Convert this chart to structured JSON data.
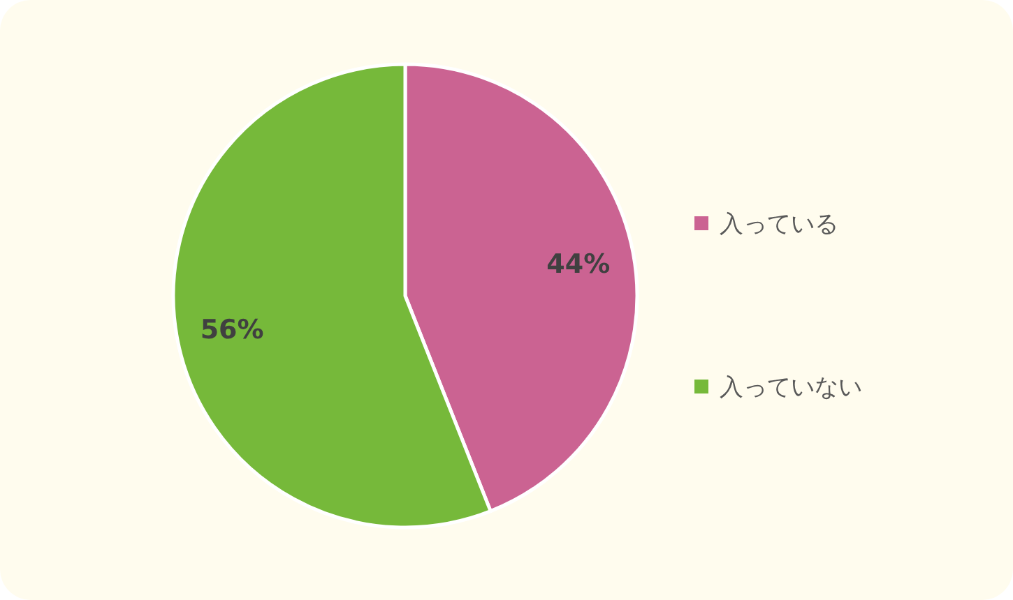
{
  "chart_data": {
    "type": "pie",
    "categories": [
      "入っている",
      "入っていない"
    ],
    "values": [
      44,
      56
    ],
    "colors": [
      "#cb6392",
      "#76b93a"
    ],
    "value_labels": [
      "44%",
      "56%"
    ],
    "legend": "right"
  }
}
